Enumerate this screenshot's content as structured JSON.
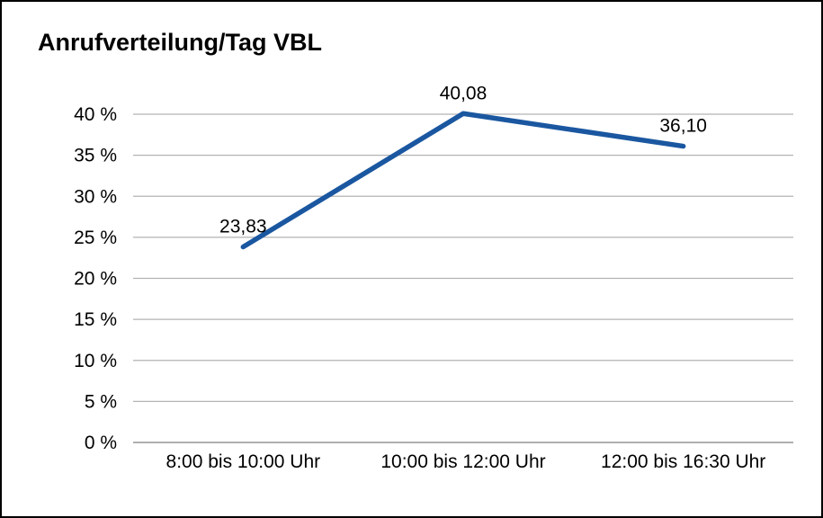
{
  "chart_data": {
    "type": "line",
    "title": "Anrufverteilung/Tag VBL",
    "categories": [
      "8:00 bis 10:00 Uhr",
      "10:00 bis 12:00 Uhr",
      "12:00 bis 16:30 Uhr"
    ],
    "values": [
      23.83,
      40.08,
      36.1
    ],
    "value_labels": [
      "23,83",
      "40,08",
      "36,10"
    ],
    "ylim": [
      0,
      40
    ],
    "ytick_step": 5,
    "ytick_suffix": " %",
    "grid": true,
    "legend": false,
    "line_color": "#1a57a0",
    "grid_color": "#b3b3b3",
    "baseline_color": "#7f7f7f",
    "text_color": "#000000",
    "background_color": "#ffffff"
  }
}
